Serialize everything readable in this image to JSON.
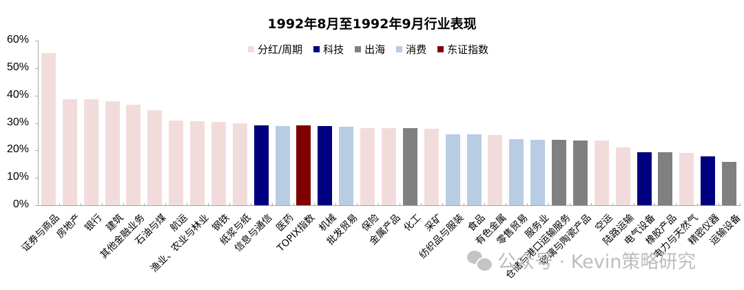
{
  "chart_data": {
    "type": "bar",
    "title": "1992年8月至1992年9月行业表现",
    "xlabel": "",
    "ylabel": "",
    "ylim": [
      0,
      60
    ],
    "yticks": [
      "0%",
      "10%",
      "20%",
      "30%",
      "40%",
      "50%",
      "60%"
    ],
    "grid": false,
    "legend_position": "top",
    "legend": [
      {
        "name": "分红/周期",
        "color": "#f2dcdb"
      },
      {
        "name": "科技",
        "color": "#000080"
      },
      {
        "name": "出海",
        "color": "#808080"
      },
      {
        "name": "消费",
        "color": "#b8cce4"
      },
      {
        "name": "东证指数",
        "color": "#800000"
      }
    ],
    "categories": [
      "证券与商品",
      "房地产",
      "银行",
      "建筑",
      "其他金融业务",
      "石油与煤",
      "航运",
      "渔业、农业与林业",
      "钢铁",
      "纸浆与纸",
      "信息与通信",
      "医药",
      "TOPIX指数",
      "机械",
      "批发贸易",
      "保险",
      "金属产品",
      "化工",
      "采矿",
      "纺织品与服装",
      "食品",
      "有色金属",
      "零售贸易",
      "服务业",
      "仓储与港口运输服务",
      "玻璃与陶瓷产品",
      "空运",
      "陆路运输",
      "电气设备",
      "橡胶产品",
      "电力与天然气",
      "精密仪器",
      "运输设备"
    ],
    "values": [
      55.5,
      38.7,
      38.6,
      37.9,
      36.7,
      34.7,
      30.9,
      30.6,
      30.3,
      29.9,
      29.0,
      28.9,
      29.0,
      28.8,
      28.6,
      28.2,
      28.1,
      28.0,
      27.9,
      25.9,
      25.8,
      25.6,
      24.0,
      23.9,
      23.8,
      23.6,
      23.5,
      21.2,
      19.4,
      19.3,
      19.1,
      17.7,
      15.8
    ],
    "groups": [
      "分红/周期",
      "分红/周期",
      "分红/周期",
      "分红/周期",
      "分红/周期",
      "分红/周期",
      "分红/周期",
      "分红/周期",
      "分红/周期",
      "分红/周期",
      "科技",
      "消费",
      "东证指数",
      "科技",
      "消费",
      "分红/周期",
      "分红/周期",
      "出海",
      "分红/周期",
      "消费",
      "消费",
      "分红/周期",
      "消费",
      "消费",
      "出海",
      "出海",
      "分红/周期",
      "分红/周期",
      "科技",
      "出海",
      "分红/周期",
      "科技",
      "出海"
    ],
    "unit": "%"
  },
  "watermark": {
    "text": "公众号 · Kevin策略研究",
    "icon": "wechat-icon"
  }
}
